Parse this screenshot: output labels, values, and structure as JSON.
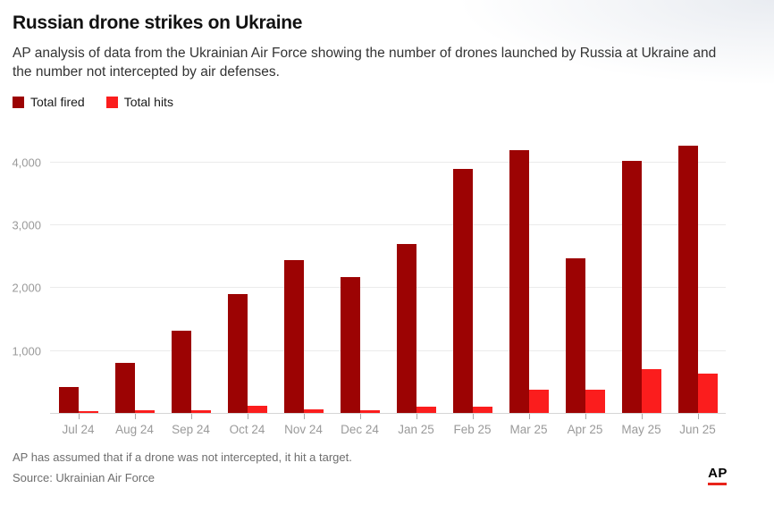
{
  "header": {
    "title": "Russian drone strikes on Ukraine",
    "subtitle": "AP analysis of data from the Ukrainian Air Force showing the number of drones launched by Russia at Ukraine and the number not intercepted by air defenses."
  },
  "legend": {
    "items": [
      {
        "label": "Total fired",
        "color": "#9c0303"
      },
      {
        "label": "Total hits",
        "color": "#fb1d1d"
      }
    ]
  },
  "chart_data": {
    "type": "bar",
    "categories": [
      "Jul 24",
      "Aug 24",
      "Sep 24",
      "Oct 24",
      "Nov 24",
      "Dec 24",
      "Jan 25",
      "Feb 25",
      "Mar 25",
      "Apr 25",
      "May 25",
      "Jun 25"
    ],
    "series": [
      {
        "name": "Total fired",
        "color": "#9c0303",
        "values": [
          430,
          810,
          1330,
          1900,
          2440,
          2180,
          2700,
          3900,
          4200,
          2480,
          4020,
          4270
        ]
      },
      {
        "name": "Total hits",
        "color": "#fb1d1d",
        "values": [
          40,
          50,
          60,
          135,
          75,
          50,
          110,
          115,
          390,
          380,
          710,
          640
        ]
      }
    ],
    "title": "Russian drone strikes on Ukraine",
    "xlabel": "",
    "ylabel": "",
    "ylim": [
      0,
      4450
    ],
    "yticks": [
      1000,
      2000,
      3000,
      4000
    ],
    "ytick_labels": [
      "1,000",
      "2,000",
      "3,000",
      "4,000"
    ],
    "grid": true,
    "legend_position": "top-left"
  },
  "footer": {
    "note": "AP has assumed that if a drone was not intercepted, it hit a target.",
    "source": "Source: Ukrainian Air Force",
    "logo_text": "AP"
  },
  "colors": {
    "fired": "#9c0303",
    "hits": "#fb1d1d",
    "gridline": "#ebebeb",
    "axis_text": "#9a9a9a"
  }
}
